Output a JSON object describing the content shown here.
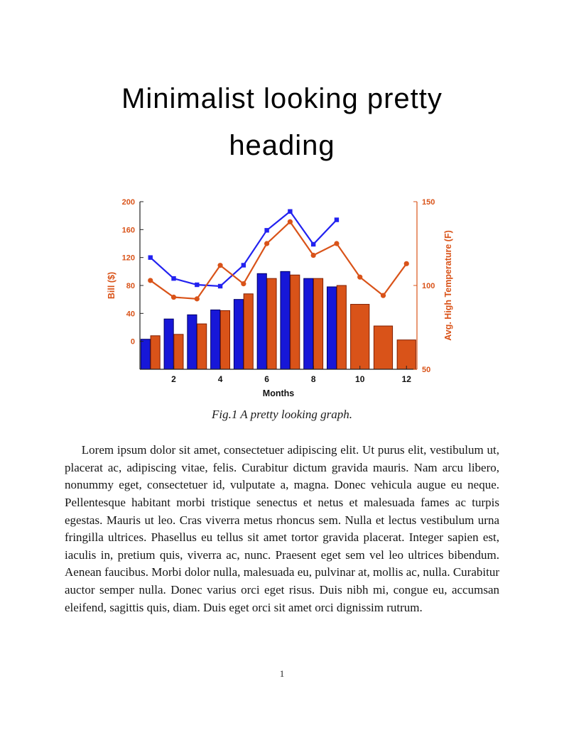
{
  "page": {
    "heading_line1": "Minimalist looking pretty",
    "heading_line2": "heading",
    "figure_caption": "Fig.1 A pretty looking graph.",
    "body_paragraph": "Lorem ipsum dolor sit amet, consectetuer adipiscing elit. Ut purus elit, vestibulum ut, placerat ac, adipiscing vitae, felis. Curabitur dictum gravida mauris. Nam arcu libero, nonummy eget, consectetuer id, vulputate a, magna. Donec vehicula augue eu neque. Pellentesque habitant morbi tristique senectus et netus et malesuada fames ac turpis egestas. Mauris ut leo. Cras viverra metus rhoncus sem. Nulla et lectus vestibulum urna fringilla ultrices. Phasellus eu tellus sit amet tortor gravida placerat. Integer sapien est, iaculis in, pretium quis, viverra ac, nunc. Praesent eget sem vel leo ultrices bibendum. Aenean faucibus. Morbi dolor nulla, malesuada eu, pulvinar at, mollis ac, nulla. Curabitur auctor semper nulla. Donec varius orci eget risus. Duis nibh mi, congue eu, accumsan eleifend, sagittis quis, diam. Duis eget orci sit amet orci dignissim rutrum.",
    "page_number": "1"
  },
  "chart_data": {
    "type": "bar",
    "description": "Grouped bar chart (blue and orange bars) with two overlaid line series and dual y-axes",
    "x": [
      1,
      2,
      3,
      4,
      5,
      6,
      7,
      8,
      9,
      10,
      11,
      12
    ],
    "xlim": [
      0.55,
      12.45
    ],
    "xticks": [
      2,
      4,
      6,
      8,
      10,
      12
    ],
    "xlabel": "Months",
    "ylabel_left": "Bill ($)",
    "yticks_left": [
      0,
      40,
      80,
      120,
      160,
      200
    ],
    "ylim_left": [
      -40,
      200
    ],
    "ylabel_right": "Avg. High Temperature (F)",
    "yticks_right": [
      50,
      100,
      150
    ],
    "ylim_right": [
      50,
      150
    ],
    "axis_color": "#D95319",
    "grid": false,
    "legend": "none",
    "series": [
      {
        "name": "bill-bars-blue",
        "type": "bar",
        "axis": "left",
        "color": "#1717D8",
        "edge": "#000066",
        "values": [
          3,
          32,
          38,
          45,
          60,
          97,
          100,
          90,
          78,
          null,
          null,
          null
        ]
      },
      {
        "name": "bill-bars-orange",
        "type": "bar",
        "axis": "left",
        "color": "#D95319",
        "edge": "#801E00",
        "values": [
          8,
          10,
          25,
          44,
          68,
          90,
          95,
          90,
          80,
          53,
          22,
          2
        ]
      },
      {
        "name": "line-blue-squares",
        "type": "line",
        "axis": "left",
        "marker": "square",
        "color": "#2222F0",
        "values": [
          120,
          90,
          81,
          79,
          109,
          159,
          186,
          139,
          174,
          null,
          null,
          null
        ]
      },
      {
        "name": "line-orange-circles",
        "type": "line",
        "axis": "right",
        "marker": "circle",
        "color": "#D95319",
        "values": [
          103,
          93,
          92,
          112,
          101,
          125,
          138,
          118,
          125,
          105,
          94,
          113
        ]
      }
    ]
  }
}
